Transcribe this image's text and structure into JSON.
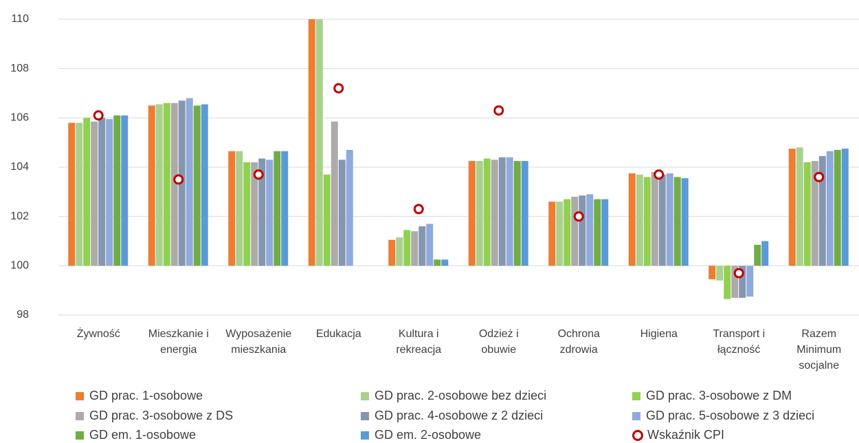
{
  "chart_data": {
    "type": "bar",
    "categories": [
      "Żywność",
      "Mieszkanie i energia",
      "Wyposażenie mieszkania",
      "Edukacja",
      "Kultura i rekreacja",
      "Odzież i obuwie",
      "Ochrona zdrowia",
      "Higiena",
      "Transport i łączność",
      "Razem Minimum socjalne"
    ],
    "baseline": 100,
    "series": [
      {
        "name": "GD prac. 1-osobowe",
        "color": "#ed7d31",
        "values": [
          105.8,
          106.5,
          104.65,
          110,
          101.05,
          104.25,
          102.6,
          103.75,
          99.45,
          104.75
        ]
      },
      {
        "name": "GD prac. 2-osobowe bez dzieci",
        "color": "#a9d18e",
        "values": [
          105.8,
          106.55,
          104.65,
          110,
          101.15,
          104.25,
          102.6,
          103.7,
          99.4,
          104.8
        ]
      },
      {
        "name": "GD prac. 3-osobowe z DM",
        "color": "#92d050",
        "values": [
          106.0,
          106.6,
          104.2,
          103.7,
          101.45,
          104.35,
          102.7,
          103.6,
          98.65,
          104.2
        ]
      },
      {
        "name": "GD prac. 3-osobowe z DS",
        "color": "#aeaaaa",
        "values": [
          105.85,
          106.6,
          104.2,
          105.85,
          101.4,
          104.3,
          102.8,
          103.8,
          98.7,
          104.25
        ]
      },
      {
        "name": "GD prac. 4-osobowe z 2 dzieci",
        "color": "#8497b0",
        "values": [
          106.0,
          106.7,
          104.35,
          104.3,
          101.6,
          104.4,
          102.85,
          103.7,
          98.7,
          104.45
        ]
      },
      {
        "name": "GD prac. 5-osobowe z 3 dzieci",
        "color": "#8faadc",
        "values": [
          105.95,
          106.8,
          104.3,
          104.7,
          101.7,
          104.4,
          102.9,
          103.75,
          98.75,
          104.65
        ]
      },
      {
        "name": "GD em. 1-osobowe",
        "color": "#70ad47",
        "values": [
          106.1,
          106.5,
          104.65,
          null,
          100.25,
          104.25,
          102.7,
          103.6,
          100.85,
          104.7
        ]
      },
      {
        "name": "GD em. 2-osobowe",
        "color": "#5b9bd5",
        "values": [
          106.1,
          106.55,
          104.65,
          null,
          100.25,
          104.25,
          102.7,
          103.55,
          101.0,
          104.75
        ]
      }
    ],
    "cpi": {
      "name": "Wskaźnik CPI",
      "color": "#c00000",
      "values": [
        106.1,
        103.5,
        103.7,
        107.2,
        102.3,
        106.3,
        102.0,
        103.7,
        99.7,
        103.6
      ]
    },
    "ylim": [
      98,
      110
    ],
    "yticks": [
      98,
      100,
      102,
      104,
      106,
      108,
      110
    ],
    "grid": true
  }
}
